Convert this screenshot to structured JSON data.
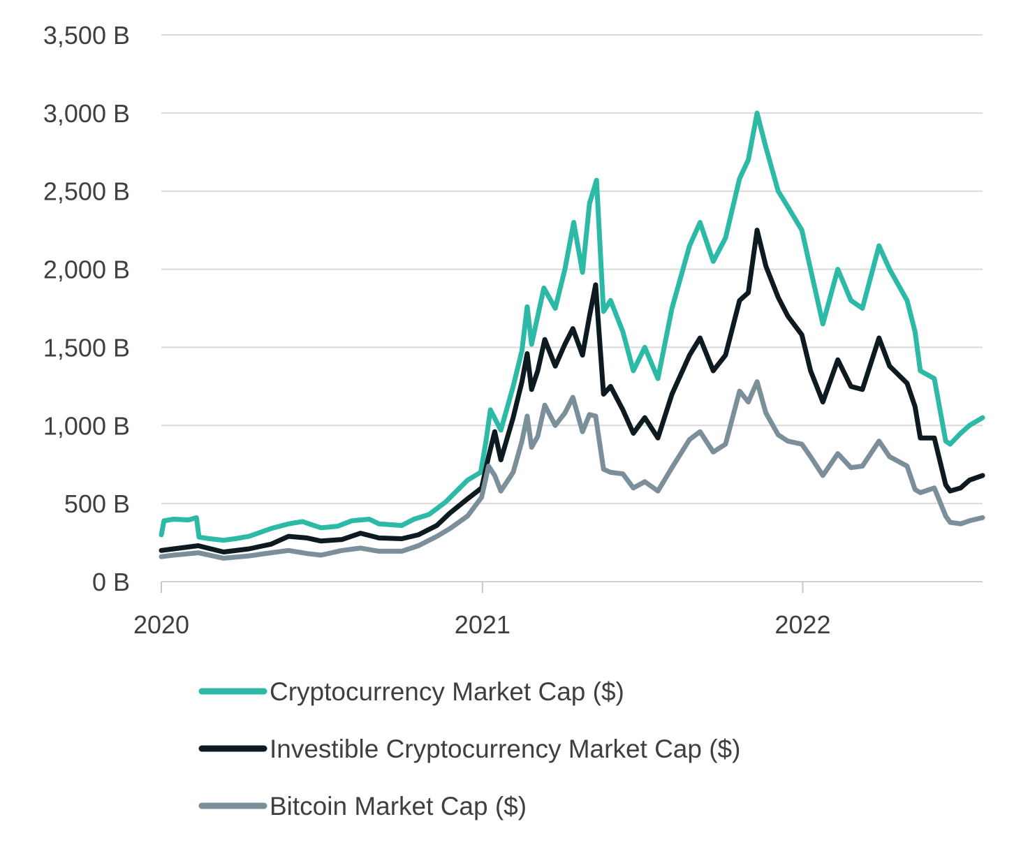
{
  "chart_data": {
    "type": "line",
    "y_unit_suffix": " B",
    "ylim": [
      0,
      3500
    ],
    "yticks": [
      0,
      500,
      1000,
      1500,
      2000,
      2500,
      3000,
      3500
    ],
    "ytick_labels": [
      "0 B",
      "500 B",
      "1,000 B",
      "1,500 B",
      "2,000 B",
      "2,500 B",
      "3,000 B",
      "3,500 B"
    ],
    "xlim": [
      "2020-01-01",
      "2022-07-25"
    ],
    "xticks": [
      "2020-01-01",
      "2021-01-01",
      "2022-01-01"
    ],
    "xtick_labels": [
      "2020",
      "2021",
      "2022"
    ],
    "grid": true,
    "legend_position": "bottom",
    "series": [
      {
        "name": "Cryptocurrency Market Cap ($)",
        "color": "#2cb9a5",
        "points": [
          [
            "2020-01-01",
            300
          ],
          [
            "2020-01-04",
            390
          ],
          [
            "2020-01-15",
            400
          ],
          [
            "2020-02-01",
            395
          ],
          [
            "2020-02-10",
            410
          ],
          [
            "2020-02-13",
            285
          ],
          [
            "2020-02-25",
            275
          ],
          [
            "2020-03-12",
            265
          ],
          [
            "2020-03-25",
            275
          ],
          [
            "2020-04-10",
            290
          ],
          [
            "2020-05-05",
            340
          ],
          [
            "2020-05-25",
            370
          ],
          [
            "2020-06-10",
            385
          ],
          [
            "2020-06-20",
            365
          ],
          [
            "2020-07-01",
            345
          ],
          [
            "2020-07-20",
            355
          ],
          [
            "2020-08-05",
            390
          ],
          [
            "2020-08-25",
            400
          ],
          [
            "2020-09-05",
            370
          ],
          [
            "2020-10-01",
            360
          ],
          [
            "2020-10-15",
            400
          ],
          [
            "2020-11-01",
            430
          ],
          [
            "2020-11-20",
            510
          ],
          [
            "2020-12-15",
            650
          ],
          [
            "2020-12-30",
            700
          ],
          [
            "2021-01-05",
            900
          ],
          [
            "2021-01-10",
            1100
          ],
          [
            "2021-01-22",
            970
          ],
          [
            "2021-02-05",
            1250
          ],
          [
            "2021-02-15",
            1480
          ],
          [
            "2021-02-21",
            1760
          ],
          [
            "2021-02-26",
            1520
          ],
          [
            "2021-03-05",
            1700
          ],
          [
            "2021-03-12",
            1880
          ],
          [
            "2021-03-25",
            1750
          ],
          [
            "2021-04-05",
            2000
          ],
          [
            "2021-04-15",
            2300
          ],
          [
            "2021-04-25",
            1980
          ],
          [
            "2021-05-03",
            2420
          ],
          [
            "2021-05-11",
            2570
          ],
          [
            "2021-05-19",
            1730
          ],
          [
            "2021-05-27",
            1800
          ],
          [
            "2021-06-10",
            1600
          ],
          [
            "2021-06-22",
            1350
          ],
          [
            "2021-07-05",
            1500
          ],
          [
            "2021-07-20",
            1300
          ],
          [
            "2021-08-05",
            1750
          ],
          [
            "2021-08-25",
            2150
          ],
          [
            "2021-09-06",
            2300
          ],
          [
            "2021-09-21",
            2050
          ],
          [
            "2021-10-05",
            2200
          ],
          [
            "2021-10-21",
            2580
          ],
          [
            "2021-10-31",
            2700
          ],
          [
            "2021-11-10",
            3000
          ],
          [
            "2021-11-20",
            2780
          ],
          [
            "2021-12-04",
            2500
          ],
          [
            "2021-12-15",
            2400
          ],
          [
            "2021-12-31",
            2250
          ],
          [
            "2022-01-10",
            2000
          ],
          [
            "2022-01-24",
            1650
          ],
          [
            "2022-02-10",
            2000
          ],
          [
            "2022-02-25",
            1800
          ],
          [
            "2022-03-10",
            1750
          ],
          [
            "2022-03-29",
            2150
          ],
          [
            "2022-04-10",
            2000
          ],
          [
            "2022-04-30",
            1800
          ],
          [
            "2022-05-09",
            1600
          ],
          [
            "2022-05-15",
            1350
          ],
          [
            "2022-05-31",
            1300
          ],
          [
            "2022-06-13",
            900
          ],
          [
            "2022-06-18",
            880
          ],
          [
            "2022-06-30",
            950
          ],
          [
            "2022-07-10",
            1000
          ],
          [
            "2022-07-25",
            1050
          ]
        ]
      },
      {
        "name": "Investible Cryptocurrency Market Cap ($)",
        "color": "#0d1a1f",
        "points": [
          [
            "2020-01-01",
            200
          ],
          [
            "2020-01-15",
            210
          ],
          [
            "2020-02-12",
            230
          ],
          [
            "2020-03-12",
            190
          ],
          [
            "2020-04-10",
            210
          ],
          [
            "2020-05-05",
            240
          ],
          [
            "2020-05-25",
            290
          ],
          [
            "2020-06-15",
            280
          ],
          [
            "2020-07-01",
            260
          ],
          [
            "2020-07-25",
            270
          ],
          [
            "2020-08-15",
            310
          ],
          [
            "2020-09-05",
            280
          ],
          [
            "2020-10-01",
            275
          ],
          [
            "2020-10-20",
            300
          ],
          [
            "2020-11-10",
            360
          ],
          [
            "2020-11-25",
            440
          ],
          [
            "2020-12-15",
            530
          ],
          [
            "2020-12-31",
            600
          ],
          [
            "2021-01-08",
            800
          ],
          [
            "2021-01-15",
            960
          ],
          [
            "2021-01-22",
            780
          ],
          [
            "2021-02-05",
            1050
          ],
          [
            "2021-02-15",
            1280
          ],
          [
            "2021-02-21",
            1460
          ],
          [
            "2021-02-26",
            1230
          ],
          [
            "2021-03-05",
            1350
          ],
          [
            "2021-03-13",
            1550
          ],
          [
            "2021-03-25",
            1380
          ],
          [
            "2021-04-05",
            1520
          ],
          [
            "2021-04-14",
            1620
          ],
          [
            "2021-04-25",
            1450
          ],
          [
            "2021-05-03",
            1700
          ],
          [
            "2021-05-10",
            1900
          ],
          [
            "2021-05-19",
            1200
          ],
          [
            "2021-05-27",
            1250
          ],
          [
            "2021-06-10",
            1100
          ],
          [
            "2021-06-22",
            950
          ],
          [
            "2021-07-05",
            1050
          ],
          [
            "2021-07-20",
            920
          ],
          [
            "2021-08-05",
            1200
          ],
          [
            "2021-08-25",
            1450
          ],
          [
            "2021-09-06",
            1560
          ],
          [
            "2021-09-21",
            1350
          ],
          [
            "2021-10-05",
            1450
          ],
          [
            "2021-10-21",
            1800
          ],
          [
            "2021-10-31",
            1850
          ],
          [
            "2021-11-10",
            2250
          ],
          [
            "2021-11-20",
            2020
          ],
          [
            "2021-12-04",
            1820
          ],
          [
            "2021-12-15",
            1700
          ],
          [
            "2021-12-31",
            1580
          ],
          [
            "2022-01-10",
            1350
          ],
          [
            "2022-01-24",
            1150
          ],
          [
            "2022-02-10",
            1420
          ],
          [
            "2022-02-25",
            1250
          ],
          [
            "2022-03-10",
            1230
          ],
          [
            "2022-03-29",
            1560
          ],
          [
            "2022-04-10",
            1380
          ],
          [
            "2022-04-30",
            1270
          ],
          [
            "2022-05-09",
            1120
          ],
          [
            "2022-05-15",
            920
          ],
          [
            "2022-05-31",
            920
          ],
          [
            "2022-06-13",
            620
          ],
          [
            "2022-06-18",
            580
          ],
          [
            "2022-06-30",
            600
          ],
          [
            "2022-07-10",
            650
          ],
          [
            "2022-07-25",
            680
          ]
        ]
      },
      {
        "name": "Bitcoin Market Cap ($)",
        "color": "#7a8f99",
        "points": [
          [
            "2020-01-01",
            160
          ],
          [
            "2020-01-15",
            170
          ],
          [
            "2020-02-12",
            185
          ],
          [
            "2020-03-12",
            150
          ],
          [
            "2020-04-10",
            165
          ],
          [
            "2020-05-05",
            185
          ],
          [
            "2020-05-25",
            200
          ],
          [
            "2020-06-15",
            180
          ],
          [
            "2020-07-01",
            170
          ],
          [
            "2020-07-25",
            200
          ],
          [
            "2020-08-15",
            215
          ],
          [
            "2020-09-05",
            195
          ],
          [
            "2020-10-01",
            195
          ],
          [
            "2020-10-20",
            230
          ],
          [
            "2020-11-10",
            290
          ],
          [
            "2020-11-25",
            340
          ],
          [
            "2020-12-15",
            420
          ],
          [
            "2020-12-31",
            540
          ],
          [
            "2021-01-08",
            740
          ],
          [
            "2021-01-15",
            680
          ],
          [
            "2021-01-22",
            580
          ],
          [
            "2021-02-05",
            700
          ],
          [
            "2021-02-15",
            900
          ],
          [
            "2021-02-21",
            1060
          ],
          [
            "2021-02-26",
            860
          ],
          [
            "2021-03-05",
            930
          ],
          [
            "2021-03-13",
            1130
          ],
          [
            "2021-03-25",
            1000
          ],
          [
            "2021-04-05",
            1080
          ],
          [
            "2021-04-14",
            1180
          ],
          [
            "2021-04-25",
            960
          ],
          [
            "2021-05-03",
            1070
          ],
          [
            "2021-05-10",
            1060
          ],
          [
            "2021-05-19",
            720
          ],
          [
            "2021-05-27",
            700
          ],
          [
            "2021-06-10",
            690
          ],
          [
            "2021-06-22",
            600
          ],
          [
            "2021-07-05",
            640
          ],
          [
            "2021-07-20",
            580
          ],
          [
            "2021-08-05",
            730
          ],
          [
            "2021-08-25",
            910
          ],
          [
            "2021-09-06",
            960
          ],
          [
            "2021-09-21",
            830
          ],
          [
            "2021-10-05",
            880
          ],
          [
            "2021-10-21",
            1220
          ],
          [
            "2021-10-31",
            1150
          ],
          [
            "2021-11-10",
            1280
          ],
          [
            "2021-11-20",
            1080
          ],
          [
            "2021-12-04",
            940
          ],
          [
            "2021-12-15",
            900
          ],
          [
            "2021-12-31",
            880
          ],
          [
            "2022-01-10",
            800
          ],
          [
            "2022-01-24",
            680
          ],
          [
            "2022-02-10",
            820
          ],
          [
            "2022-02-25",
            730
          ],
          [
            "2022-03-10",
            740
          ],
          [
            "2022-03-29",
            900
          ],
          [
            "2022-04-10",
            800
          ],
          [
            "2022-04-30",
            740
          ],
          [
            "2022-05-09",
            590
          ],
          [
            "2022-05-15",
            570
          ],
          [
            "2022-05-31",
            600
          ],
          [
            "2022-06-13",
            420
          ],
          [
            "2022-06-18",
            380
          ],
          [
            "2022-06-30",
            370
          ],
          [
            "2022-07-10",
            390
          ],
          [
            "2022-07-25",
            410
          ]
        ]
      }
    ]
  }
}
